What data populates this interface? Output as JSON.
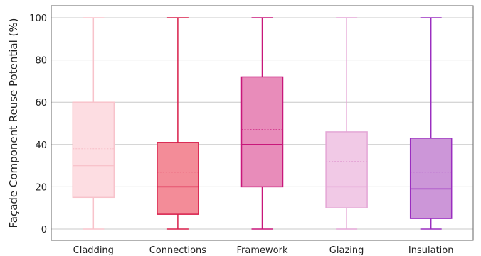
{
  "chart_data": {
    "type": "boxplot",
    "title": "",
    "xlabel": "",
    "ylabel": "Façade Component Reuse Potential (%)",
    "ylim": [
      0,
      100
    ],
    "yticks": [
      0,
      20,
      40,
      60,
      80,
      100
    ],
    "grid": "horizontal",
    "categories": [
      "Cladding",
      "Connections",
      "Framework",
      "Glazing",
      "Insulation"
    ],
    "boxes": [
      {
        "category": "Cladding",
        "min": 0,
        "q1": 15,
        "median": 30,
        "mean": 38,
        "q3": 60,
        "max": 100,
        "fill": "#fddde2",
        "stroke": "#f8c3cb"
      },
      {
        "category": "Connections",
        "min": 0,
        "q1": 7,
        "median": 20,
        "mean": 27,
        "q3": 41,
        "max": 100,
        "fill": "#f38c98",
        "stroke": "#d81e4a"
      },
      {
        "category": "Framework",
        "min": 0,
        "q1": 20,
        "median": 40,
        "mean": 47,
        "q3": 72,
        "max": 100,
        "fill": "#e88cba",
        "stroke": "#c8177a"
      },
      {
        "category": "Glazing",
        "min": 0,
        "q1": 10,
        "median": 20,
        "mean": 32,
        "q3": 46,
        "max": 100,
        "fill": "#f1c9e6",
        "stroke": "#e4a6d6"
      },
      {
        "category": "Insulation",
        "min": 0,
        "q1": 5,
        "median": 19,
        "mean": 27,
        "q3": 43,
        "max": 100,
        "fill": "#cc96d8",
        "stroke": "#9a2ec0"
      }
    ]
  }
}
